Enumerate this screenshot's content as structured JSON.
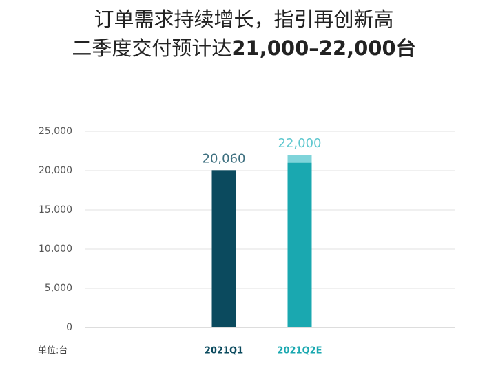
{
  "chart_data": {
    "type": "stacked_bar",
    "title": "订单需求持续增长，指引再创新高",
    "subtitle": "二季度交付预计达",
    "subtitle_emphasis": "21,000–22,000台",
    "unit_label": "单位:台",
    "categories": [
      "2021Q1",
      "2021Q2E"
    ],
    "category_colors": [
      "#0b4a5e",
      "#1aa8b0"
    ],
    "series": [
      {
        "colors": [
          "#0b4a5e",
          "#1aa8b0"
        ],
        "values": [
          20060,
          21000
        ]
      },
      {
        "color": "#7fd4da",
        "values": [
          null,
          1000
        ]
      }
    ],
    "totals": [
      20060,
      22000
    ],
    "total_labels": [
      "20,060",
      "22,000"
    ],
    "total_label_colors": [
      "#3d6f7f",
      "#5fc8cf"
    ],
    "ylim": [
      0,
      25000
    ],
    "yticks": [
      0,
      {
        "value": 5000,
        "label": "5,000"
      },
      {
        "value": 10000,
        "label": "10,000"
      },
      {
        "value": 15000,
        "label": "15,000"
      },
      {
        "value": 20000,
        "label": "20,000"
      },
      {
        "value": 25000,
        "label": "25,000"
      }
    ],
    "grid": true
  }
}
